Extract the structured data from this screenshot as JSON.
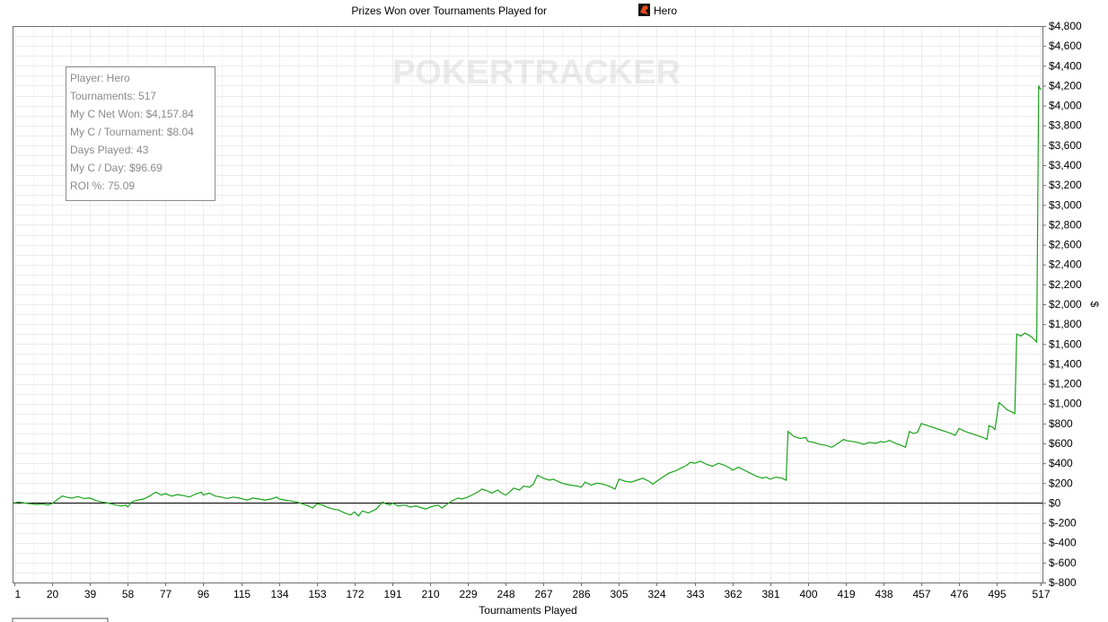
{
  "chart_data": {
    "type": "line",
    "title": "Prizes Won over Tournaments Played for",
    "player_name": "Hero",
    "watermark": "POKERTRACKER",
    "xlabel": "Tournaments Played",
    "ylabel": "$",
    "xlim": [
      1,
      517
    ],
    "ylim": [
      -800,
      4800
    ],
    "x_ticks": [
      1,
      20,
      39,
      58,
      77,
      96,
      115,
      134,
      153,
      172,
      191,
      210,
      229,
      248,
      267,
      286,
      305,
      324,
      343,
      362,
      381,
      400,
      419,
      438,
      457,
      476,
      495,
      517
    ],
    "y_ticks": [
      {
        "value": -800,
        "label": "$-800"
      },
      {
        "value": -600,
        "label": "$-600"
      },
      {
        "value": -400,
        "label": "$-400"
      },
      {
        "value": -200,
        "label": "$-200"
      },
      {
        "value": 0,
        "label": "$0"
      },
      {
        "value": 200,
        "label": "$200"
      },
      {
        "value": 400,
        "label": "$400"
      },
      {
        "value": 600,
        "label": "$600"
      },
      {
        "value": 800,
        "label": "$800"
      },
      {
        "value": 1000,
        "label": "$1,000"
      },
      {
        "value": 1200,
        "label": "$1,200"
      },
      {
        "value": 1400,
        "label": "$1,400"
      },
      {
        "value": 1600,
        "label": "$1,600"
      },
      {
        "value": 1800,
        "label": "$1,800"
      },
      {
        "value": 2000,
        "label": "$2,000"
      },
      {
        "value": 2200,
        "label": "$2,200"
      },
      {
        "value": 2400,
        "label": "$2,400"
      },
      {
        "value": 2600,
        "label": "$2,600"
      },
      {
        "value": 2800,
        "label": "$2,800"
      },
      {
        "value": 3000,
        "label": "$3,000"
      },
      {
        "value": 3200,
        "label": "$3,200"
      },
      {
        "value": 3400,
        "label": "$3,400"
      },
      {
        "value": 3600,
        "label": "$3,600"
      },
      {
        "value": 3800,
        "label": "$3,800"
      },
      {
        "value": 4000,
        "label": "$4,000"
      },
      {
        "value": 4200,
        "label": "$4,200"
      },
      {
        "value": 4400,
        "label": "$4,400"
      },
      {
        "value": 4600,
        "label": "$4,600"
      },
      {
        "value": 4800,
        "label": "$4,800"
      }
    ],
    "grid": true,
    "series": [
      {
        "color": "#1aa31a",
        "points": [
          [
            1,
            0
          ],
          [
            3,
            10
          ],
          [
            8,
            -5
          ],
          [
            12,
            -15
          ],
          [
            15,
            -10
          ],
          [
            18,
            -20
          ],
          [
            20,
            -5
          ],
          [
            23,
            40
          ],
          [
            25,
            70
          ],
          [
            28,
            55
          ],
          [
            30,
            50
          ],
          [
            33,
            65
          ],
          [
            36,
            45
          ],
          [
            39,
            50
          ],
          [
            42,
            25
          ],
          [
            45,
            10
          ],
          [
            48,
            0
          ],
          [
            50,
            -10
          ],
          [
            52,
            -20
          ],
          [
            55,
            -30
          ],
          [
            57,
            -20
          ],
          [
            58,
            -40
          ],
          [
            60,
            10
          ],
          [
            63,
            30
          ],
          [
            66,
            40
          ],
          [
            69,
            70
          ],
          [
            72,
            110
          ],
          [
            75,
            80
          ],
          [
            77,
            95
          ],
          [
            80,
            70
          ],
          [
            83,
            85
          ],
          [
            86,
            75
          ],
          [
            89,
            60
          ],
          [
            92,
            90
          ],
          [
            95,
            110
          ],
          [
            96,
            80
          ],
          [
            99,
            100
          ],
          [
            102,
            70
          ],
          [
            105,
            60
          ],
          [
            108,
            45
          ],
          [
            111,
            60
          ],
          [
            114,
            50
          ],
          [
            115,
            45
          ],
          [
            118,
            30
          ],
          [
            121,
            50
          ],
          [
            124,
            40
          ],
          [
            127,
            30
          ],
          [
            130,
            40
          ],
          [
            133,
            60
          ],
          [
            134,
            40
          ],
          [
            137,
            30
          ],
          [
            140,
            20
          ],
          [
            143,
            10
          ],
          [
            146,
            -10
          ],
          [
            149,
            -30
          ],
          [
            151,
            -50
          ],
          [
            153,
            -10
          ],
          [
            156,
            -20
          ],
          [
            158,
            -40
          ],
          [
            161,
            -60
          ],
          [
            164,
            -70
          ],
          [
            167,
            -100
          ],
          [
            170,
            -120
          ],
          [
            172,
            -90
          ],
          [
            174,
            -130
          ],
          [
            176,
            -80
          ],
          [
            179,
            -100
          ],
          [
            181,
            -80
          ],
          [
            183,
            -60
          ],
          [
            186,
            10
          ],
          [
            188,
            -10
          ],
          [
            190,
            -20
          ],
          [
            191,
            0
          ],
          [
            194,
            -30
          ],
          [
            197,
            -20
          ],
          [
            200,
            -40
          ],
          [
            203,
            -30
          ],
          [
            206,
            -50
          ],
          [
            208,
            -60
          ],
          [
            210,
            -40
          ],
          [
            212,
            -30
          ],
          [
            214,
            -20
          ],
          [
            216,
            -50
          ],
          [
            218,
            -20
          ],
          [
            221,
            20
          ],
          [
            224,
            50
          ],
          [
            226,
            40
          ],
          [
            229,
            60
          ],
          [
            232,
            90
          ],
          [
            234,
            110
          ],
          [
            236,
            140
          ],
          [
            239,
            120
          ],
          [
            241,
            100
          ],
          [
            244,
            130
          ],
          [
            246,
            100
          ],
          [
            248,
            80
          ],
          [
            250,
            110
          ],
          [
            252,
            150
          ],
          [
            255,
            130
          ],
          [
            257,
            170
          ],
          [
            260,
            160
          ],
          [
            262,
            190
          ],
          [
            264,
            280
          ],
          [
            266,
            260
          ],
          [
            267,
            250
          ],
          [
            270,
            230
          ],
          [
            272,
            240
          ],
          [
            275,
            210
          ],
          [
            278,
            190
          ],
          [
            281,
            180
          ],
          [
            284,
            170
          ],
          [
            286,
            160
          ],
          [
            288,
            210
          ],
          [
            291,
            180
          ],
          [
            294,
            200
          ],
          [
            297,
            190
          ],
          [
            300,
            170
          ],
          [
            303,
            140
          ],
          [
            305,
            240
          ],
          [
            308,
            220
          ],
          [
            311,
            210
          ],
          [
            314,
            230
          ],
          [
            317,
            250
          ],
          [
            320,
            220
          ],
          [
            322,
            190
          ],
          [
            324,
            220
          ],
          [
            327,
            260
          ],
          [
            330,
            300
          ],
          [
            333,
            320
          ],
          [
            336,
            350
          ],
          [
            339,
            380
          ],
          [
            341,
            410
          ],
          [
            343,
            400
          ],
          [
            346,
            420
          ],
          [
            349,
            390
          ],
          [
            352,
            370
          ],
          [
            355,
            400
          ],
          [
            358,
            380
          ],
          [
            361,
            350
          ],
          [
            362,
            330
          ],
          [
            365,
            360
          ],
          [
            368,
            330
          ],
          [
            371,
            300
          ],
          [
            374,
            270
          ],
          [
            377,
            250
          ],
          [
            379,
            260
          ],
          [
            381,
            240
          ],
          [
            384,
            260
          ],
          [
            387,
            250
          ],
          [
            389,
            230
          ],
          [
            390,
            720
          ],
          [
            393,
            670
          ],
          [
            396,
            650
          ],
          [
            399,
            660
          ],
          [
            400,
            620
          ],
          [
            403,
            610
          ],
          [
            406,
            590
          ],
          [
            409,
            580
          ],
          [
            412,
            560
          ],
          [
            415,
            600
          ],
          [
            418,
            640
          ],
          [
            419,
            630
          ],
          [
            422,
            620
          ],
          [
            425,
            610
          ],
          [
            428,
            590
          ],
          [
            431,
            610
          ],
          [
            434,
            600
          ],
          [
            437,
            620
          ],
          [
            438,
            610
          ],
          [
            441,
            630
          ],
          [
            444,
            600
          ],
          [
            447,
            580
          ],
          [
            449,
            560
          ],
          [
            451,
            720
          ],
          [
            453,
            700
          ],
          [
            455,
            710
          ],
          [
            457,
            800
          ],
          [
            460,
            780
          ],
          [
            463,
            760
          ],
          [
            466,
            740
          ],
          [
            469,
            720
          ],
          [
            472,
            700
          ],
          [
            474,
            680
          ],
          [
            476,
            750
          ],
          [
            479,
            720
          ],
          [
            482,
            700
          ],
          [
            485,
            680
          ],
          [
            488,
            660
          ],
          [
            490,
            640
          ],
          [
            491,
            780
          ],
          [
            493,
            760
          ],
          [
            494,
            740
          ],
          [
            496,
            1010
          ],
          [
            498,
            980
          ],
          [
            500,
            940
          ],
          [
            502,
            920
          ],
          [
            504,
            900
          ],
          [
            505,
            1700
          ],
          [
            507,
            1680
          ],
          [
            509,
            1710
          ],
          [
            511,
            1690
          ],
          [
            513,
            1660
          ],
          [
            515,
            1620
          ],
          [
            516,
            4200
          ],
          [
            517,
            4158
          ]
        ]
      }
    ]
  },
  "stats_box": {
    "lines": [
      "Player: Hero",
      "Tournaments: 517",
      "My C Net Won: $4,157.84",
      "My C / Tournament: $8.04",
      "Days Played: 43",
      "My C / Day: $96.69",
      "ROI %: 75.09"
    ]
  }
}
